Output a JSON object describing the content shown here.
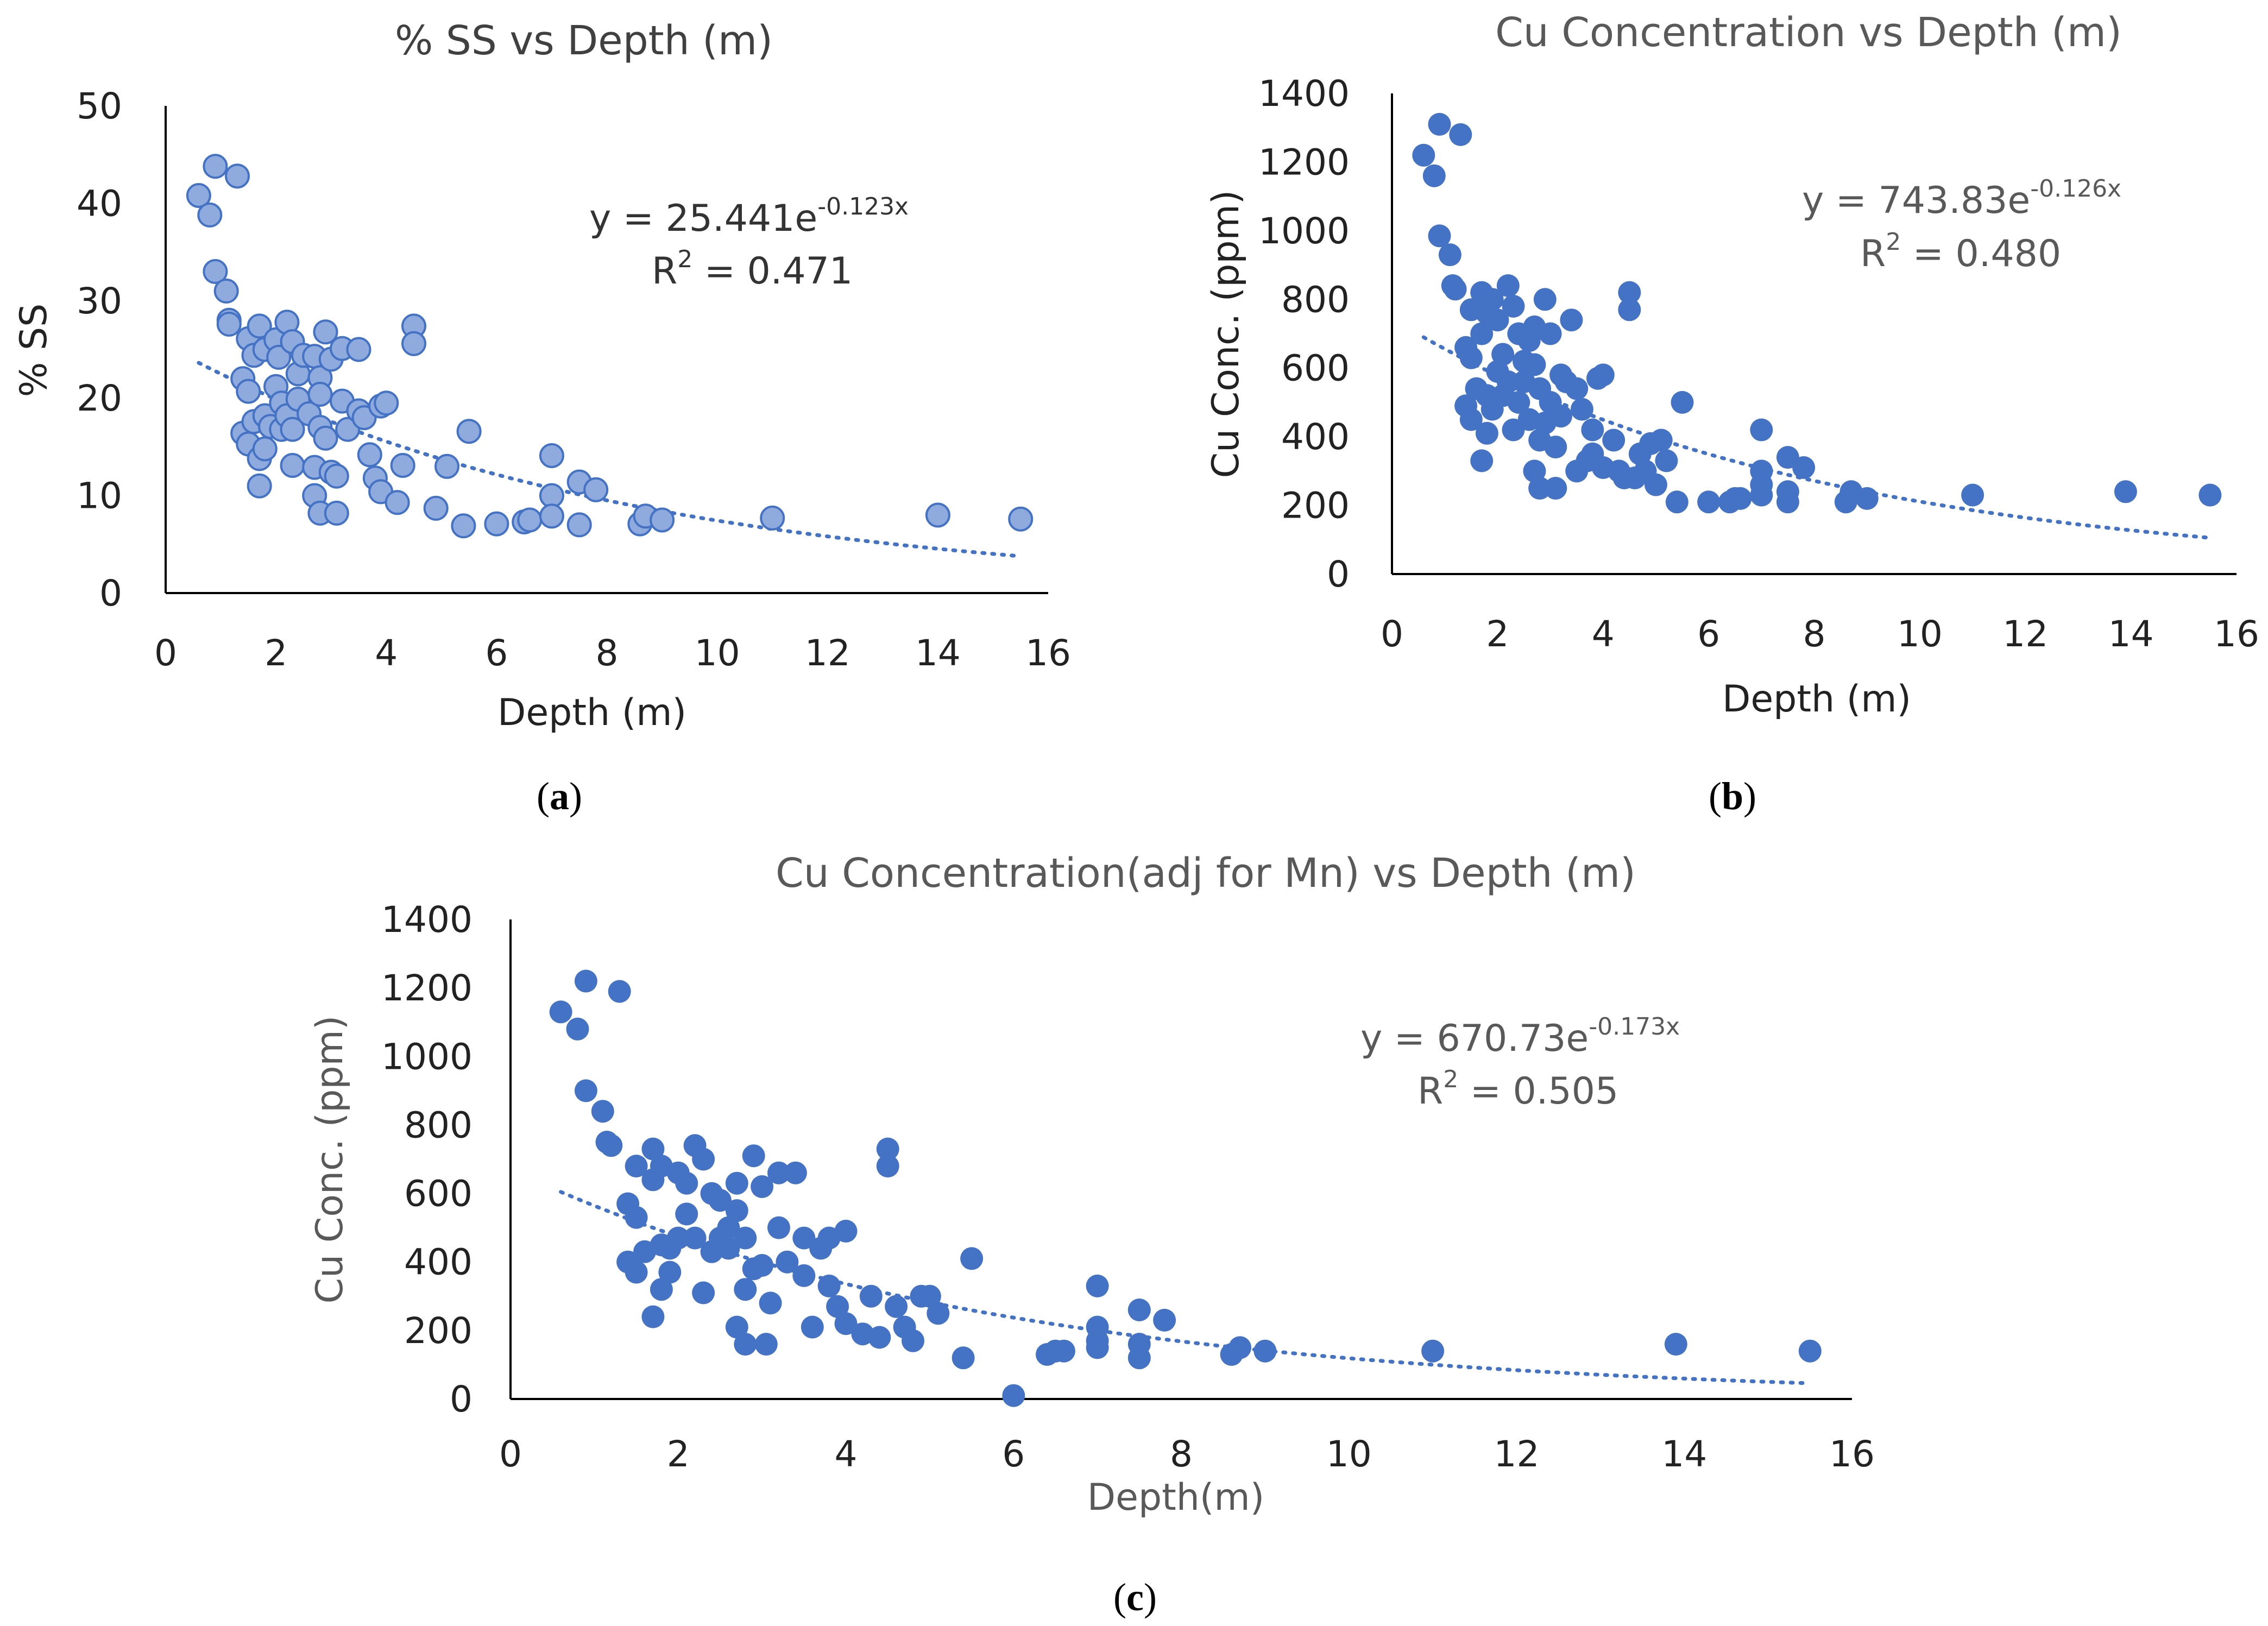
{
  "colors": {
    "solid_marker": "#4472C4",
    "light_marker": "#8FAADC",
    "light_marker_edge": "#4472C4",
    "trendline": "#4472C4"
  },
  "chart_data": [
    {
      "id": "a",
      "type": "scatter",
      "panel_label": "a",
      "title": "% SS vs Depth (m)",
      "xlabel": "Depth (m)",
      "ylabel": "% SS",
      "xlim": [
        0,
        16
      ],
      "ylim": [
        0,
        50
      ],
      "xticks": [
        0,
        2,
        4,
        6,
        8,
        10,
        12,
        14,
        16
      ],
      "yticks": [
        0,
        10,
        20,
        30,
        40,
        50
      ],
      "grid": false,
      "marker_style": "light",
      "equation": {
        "prefix": "y = 25.441e",
        "exponent": "-0.123x",
        "r2_prefix": "R",
        "r2_sup": "2",
        "r2_value": " = 0.471"
      },
      "trendline": {
        "kind": "exponential",
        "a": 25.441,
        "b": -0.123,
        "x_range": [
          0.6,
          15.5
        ]
      },
      "points": [
        [
          0.6,
          40.8
        ],
        [
          0.8,
          38.8
        ],
        [
          0.9,
          43.8
        ],
        [
          0.9,
          33.0
        ],
        [
          1.1,
          31.0
        ],
        [
          1.15,
          28.0
        ],
        [
          1.15,
          27.6
        ],
        [
          1.3,
          42.8
        ],
        [
          1.4,
          22.0
        ],
        [
          1.4,
          16.4
        ],
        [
          1.5,
          26.1
        ],
        [
          1.5,
          20.7
        ],
        [
          1.5,
          15.3
        ],
        [
          1.6,
          24.4
        ],
        [
          1.6,
          17.6
        ],
        [
          1.7,
          27.4
        ],
        [
          1.7,
          13.8
        ],
        [
          1.7,
          11.0
        ],
        [
          1.8,
          25.0
        ],
        [
          1.8,
          18.2
        ],
        [
          1.8,
          14.8
        ],
        [
          1.9,
          17.1
        ],
        [
          2.0,
          26.0
        ],
        [
          2.0,
          21.2
        ],
        [
          2.05,
          24.2
        ],
        [
          2.1,
          19.5
        ],
        [
          2.1,
          16.8
        ],
        [
          2.2,
          27.8
        ],
        [
          2.2,
          18.2
        ],
        [
          2.3,
          25.8
        ],
        [
          2.3,
          13.1
        ],
        [
          2.3,
          16.8
        ],
        [
          2.4,
          22.5
        ],
        [
          2.4,
          19.9
        ],
        [
          2.5,
          24.4
        ],
        [
          2.6,
          18.4
        ],
        [
          2.7,
          24.3
        ],
        [
          2.7,
          12.9
        ],
        [
          2.7,
          10.0
        ],
        [
          2.8,
          22.1
        ],
        [
          2.8,
          20.4
        ],
        [
          2.8,
          17.0
        ],
        [
          2.8,
          8.2
        ],
        [
          2.9,
          26.8
        ],
        [
          2.9,
          15.9
        ],
        [
          3.0,
          24.0
        ],
        [
          3.0,
          12.4
        ],
        [
          3.1,
          8.2
        ],
        [
          3.1,
          12.0
        ],
        [
          3.2,
          25.1
        ],
        [
          3.2,
          19.7
        ],
        [
          3.3,
          16.8
        ],
        [
          3.5,
          25.0
        ],
        [
          3.5,
          18.7
        ],
        [
          3.6,
          18.0
        ],
        [
          3.7,
          14.2
        ],
        [
          3.8,
          11.8
        ],
        [
          3.9,
          10.4
        ],
        [
          3.9,
          19.2
        ],
        [
          4.0,
          19.5
        ],
        [
          4.2,
          9.3
        ],
        [
          4.3,
          13.1
        ],
        [
          4.5,
          27.4
        ],
        [
          4.5,
          25.6
        ],
        [
          4.9,
          8.7
        ],
        [
          5.1,
          13.0
        ],
        [
          5.4,
          6.9
        ],
        [
          5.5,
          16.6
        ],
        [
          6.0,
          7.1
        ],
        [
          6.5,
          7.3
        ],
        [
          6.6,
          7.5
        ],
        [
          7.0,
          14.1
        ],
        [
          7.0,
          10.0
        ],
        [
          7.0,
          7.9
        ],
        [
          7.5,
          11.4
        ],
        [
          7.5,
          7.0
        ],
        [
          7.8,
          10.6
        ],
        [
          8.6,
          7.1
        ],
        [
          8.7,
          7.9
        ],
        [
          9.0,
          7.5
        ],
        [
          11.0,
          7.7
        ],
        [
          14.0,
          8.0
        ],
        [
          15.5,
          7.6
        ]
      ]
    },
    {
      "id": "b",
      "type": "scatter",
      "panel_label": "b",
      "title": "Cu Concentration vs Depth (m)",
      "xlabel": "Depth (m)",
      "ylabel": "Cu Conc. (ppm)",
      "xlim": [
        0,
        16
      ],
      "ylim": [
        0,
        1400
      ],
      "xticks": [
        0,
        2,
        4,
        6,
        8,
        10,
        12,
        14,
        16
      ],
      "yticks": [
        0,
        200,
        400,
        600,
        800,
        1000,
        1200,
        1400
      ],
      "grid": false,
      "marker_style": "solid",
      "equation": {
        "prefix": "y = 743.83e",
        "exponent": "-0.126x",
        "r2_prefix": "R",
        "r2_sup": "2",
        "r2_value": " = 0.480"
      },
      "trendline": {
        "kind": "exponential",
        "a": 743.83,
        "b": -0.126,
        "x_range": [
          0.6,
          15.5
        ]
      },
      "points": [
        [
          0.6,
          1220
        ],
        [
          0.8,
          1160
        ],
        [
          0.9,
          1310
        ],
        [
          0.9,
          985
        ],
        [
          1.1,
          930
        ],
        [
          1.15,
          840
        ],
        [
          1.2,
          830
        ],
        [
          1.3,
          1280
        ],
        [
          1.4,
          660
        ],
        [
          1.4,
          490
        ],
        [
          1.5,
          770
        ],
        [
          1.5,
          630
        ],
        [
          1.5,
          450
        ],
        [
          1.6,
          540
        ],
        [
          1.7,
          820
        ],
        [
          1.7,
          700
        ],
        [
          1.7,
          330
        ],
        [
          1.8,
          760
        ],
        [
          1.8,
          520
        ],
        [
          1.8,
          410
        ],
        [
          1.9,
          800
        ],
        [
          1.9,
          480
        ],
        [
          2.0,
          740
        ],
        [
          2.0,
          590
        ],
        [
          2.1,
          640
        ],
        [
          2.1,
          520
        ],
        [
          2.2,
          840
        ],
        [
          2.2,
          560
        ],
        [
          2.3,
          780
        ],
        [
          2.3,
          420
        ],
        [
          2.4,
          700
        ],
        [
          2.4,
          500
        ],
        [
          2.5,
          620
        ],
        [
          2.5,
          560
        ],
        [
          2.6,
          680
        ],
        [
          2.6,
          450
        ],
        [
          2.7,
          720
        ],
        [
          2.7,
          610
        ],
        [
          2.7,
          300
        ],
        [
          2.8,
          540
        ],
        [
          2.8,
          390
        ],
        [
          2.8,
          250
        ],
        [
          2.9,
          800
        ],
        [
          2.9,
          440
        ],
        [
          3.0,
          700
        ],
        [
          3.0,
          500
        ],
        [
          3.1,
          250
        ],
        [
          3.1,
          370
        ],
        [
          3.2,
          580
        ],
        [
          3.2,
          460
        ],
        [
          3.3,
          560
        ],
        [
          3.4,
          740
        ],
        [
          3.5,
          540
        ],
        [
          3.5,
          300
        ],
        [
          3.6,
          480
        ],
        [
          3.7,
          330
        ],
        [
          3.8,
          350
        ],
        [
          3.8,
          420
        ],
        [
          3.9,
          570
        ],
        [
          4.0,
          580
        ],
        [
          4.0,
          310
        ],
        [
          4.2,
          390
        ],
        [
          4.3,
          300
        ],
        [
          4.4,
          280
        ],
        [
          4.5,
          820
        ],
        [
          4.5,
          770
        ],
        [
          4.6,
          280
        ],
        [
          4.7,
          350
        ],
        [
          4.8,
          300
        ],
        [
          4.9,
          380
        ],
        [
          5.0,
          260
        ],
        [
          5.1,
          390
        ],
        [
          5.2,
          330
        ],
        [
          5.4,
          210
        ],
        [
          5.5,
          500
        ],
        [
          6.0,
          210
        ],
        [
          6.4,
          210
        ],
        [
          6.5,
          220
        ],
        [
          6.6,
          220
        ],
        [
          7.0,
          420
        ],
        [
          7.0,
          300
        ],
        [
          7.0,
          260
        ],
        [
          7.0,
          230
        ],
        [
          7.5,
          340
        ],
        [
          7.5,
          240
        ],
        [
          7.5,
          210
        ],
        [
          7.8,
          310
        ],
        [
          8.6,
          210
        ],
        [
          8.7,
          240
        ],
        [
          9.0,
          220
        ],
        [
          11.0,
          230
        ],
        [
          13.9,
          240
        ],
        [
          15.5,
          230
        ]
      ]
    },
    {
      "id": "c",
      "type": "scatter",
      "panel_label": "c",
      "title": "Cu Concentration(adj for Mn) vs Depth (m)",
      "xlabel": "Depth(m)",
      "ylabel": "Cu Conc. (ppm)",
      "xlim": [
        0,
        16
      ],
      "ylim": [
        0,
        1400
      ],
      "xticks": [
        0,
        2,
        4,
        6,
        8,
        10,
        12,
        14,
        16
      ],
      "yticks": [
        0,
        200,
        400,
        600,
        800,
        1000,
        1200,
        1400
      ],
      "grid": false,
      "marker_style": "solid",
      "equation": {
        "prefix": "y = 670.73e",
        "exponent": "-0.173x",
        "r2_prefix": "R",
        "r2_sup": "2",
        "r2_value": " = 0.505"
      },
      "trendline": {
        "kind": "exponential",
        "a": 670.73,
        "b": -0.173,
        "x_range": [
          0.6,
          15.5
        ]
      },
      "points": [
        [
          0.6,
          1130
        ],
        [
          0.8,
          1080
        ],
        [
          0.9,
          1220
        ],
        [
          0.9,
          900
        ],
        [
          1.1,
          840
        ],
        [
          1.15,
          750
        ],
        [
          1.2,
          740
        ],
        [
          1.3,
          1190
        ],
        [
          1.4,
          400
        ],
        [
          1.4,
          570
        ],
        [
          1.5,
          680
        ],
        [
          1.5,
          530
        ],
        [
          1.5,
          370
        ],
        [
          1.6,
          430
        ],
        [
          1.7,
          730
        ],
        [
          1.7,
          640
        ],
        [
          1.7,
          240
        ],
        [
          1.8,
          680
        ],
        [
          1.8,
          450
        ],
        [
          1.8,
          320
        ],
        [
          1.9,
          440
        ],
        [
          1.9,
          370
        ],
        [
          2.0,
          660
        ],
        [
          2.0,
          470
        ],
        [
          2.1,
          630
        ],
        [
          2.1,
          540
        ],
        [
          2.2,
          740
        ],
        [
          2.2,
          470
        ],
        [
          2.3,
          700
        ],
        [
          2.3,
          310
        ],
        [
          2.4,
          600
        ],
        [
          2.4,
          430
        ],
        [
          2.5,
          580
        ],
        [
          2.5,
          470
        ],
        [
          2.6,
          500
        ],
        [
          2.6,
          440
        ],
        [
          2.7,
          630
        ],
        [
          2.7,
          550
        ],
        [
          2.7,
          210
        ],
        [
          2.8,
          470
        ],
        [
          2.8,
          320
        ],
        [
          2.8,
          160
        ],
        [
          2.9,
          710
        ],
        [
          2.9,
          380
        ],
        [
          3.0,
          620
        ],
        [
          3.0,
          390
        ],
        [
          3.05,
          160
        ],
        [
          3.1,
          280
        ],
        [
          3.2,
          660
        ],
        [
          3.2,
          500
        ],
        [
          3.3,
          400
        ],
        [
          3.4,
          660
        ],
        [
          3.5,
          470
        ],
        [
          3.5,
          360
        ],
        [
          3.6,
          210
        ],
        [
          3.7,
          440
        ],
        [
          3.8,
          330
        ],
        [
          3.8,
          470
        ],
        [
          3.9,
          270
        ],
        [
          4.0,
          490
        ],
        [
          4.0,
          220
        ],
        [
          4.2,
          190
        ],
        [
          4.3,
          300
        ],
        [
          4.4,
          180
        ],
        [
          4.5,
          730
        ],
        [
          4.5,
          680
        ],
        [
          4.6,
          270
        ],
        [
          4.7,
          210
        ],
        [
          4.8,
          170
        ],
        [
          4.9,
          300
        ],
        [
          5.0,
          300
        ],
        [
          5.1,
          250
        ],
        [
          5.4,
          120
        ],
        [
          5.5,
          410
        ],
        [
          6.0,
          10
        ],
        [
          6.4,
          130
        ],
        [
          6.5,
          140
        ],
        [
          6.6,
          140
        ],
        [
          7.0,
          330
        ],
        [
          7.0,
          210
        ],
        [
          7.0,
          170
        ],
        [
          7.0,
          150
        ],
        [
          7.5,
          260
        ],
        [
          7.5,
          160
        ],
        [
          7.5,
          120
        ],
        [
          7.8,
          230
        ],
        [
          8.6,
          130
        ],
        [
          8.7,
          150
        ],
        [
          9.0,
          140
        ],
        [
          11.0,
          140
        ],
        [
          13.9,
          160
        ],
        [
          15.5,
          140
        ]
      ]
    }
  ]
}
